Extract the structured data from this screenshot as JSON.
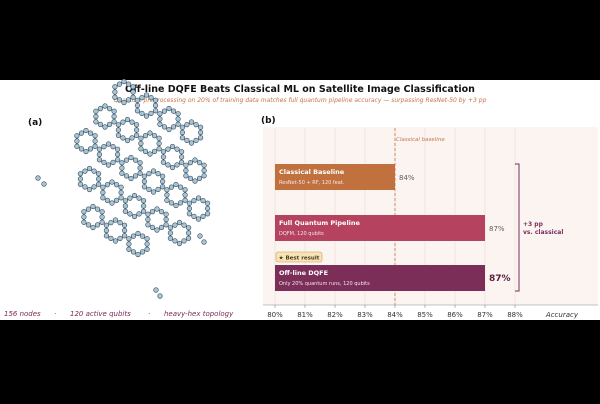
{
  "figure": {
    "title": "Off-line DQFE Beats Classical ML on Satellite Image Classification",
    "subtitle": "Quantum preprocessing on 20% of training data matches full quantum pipeline accuracy — surpassing ResNet-50 by +3 pp",
    "colors": {
      "title": "#111111",
      "subtitle": "#c8744a",
      "node_fill": "#a9c4d4",
      "node_stroke": "#2e4656",
      "edge": "#3a4a55",
      "caption": "#7a2a55",
      "panel_bg": "#fbf4f0",
      "bracket": "#7a2e5e"
    }
  },
  "panel_a": {
    "label": "(a)",
    "caption_nodes": "156 nodes",
    "caption_sep": "·",
    "caption_qubits": "120 active qubits",
    "caption_topology": "heavy-hex topology"
  },
  "panel_b": {
    "label": "(b)",
    "baseline_label": "Classical baseline",
    "best_badge": "★ Best result",
    "bracket_label_1": "+3 pp",
    "bracket_label_2": "vs. classical"
  },
  "chart_data": {
    "type": "bar",
    "orientation": "horizontal",
    "xlabel": "Accuracy",
    "xlim": [
      80,
      88.5
    ],
    "ticks": [
      80,
      81,
      82,
      83,
      84,
      85,
      86,
      87,
      88
    ],
    "tick_labels": [
      "80%",
      "81%",
      "82%",
      "83%",
      "84%",
      "85%",
      "86%",
      "87%",
      "88%"
    ],
    "reference_line": {
      "value": 84,
      "label": "Classical baseline"
    },
    "grid": "vertical",
    "bars": [
      {
        "name": "Classical Baseline",
        "detail": "ResNet-50 + RF, 120 feat.",
        "value": 84,
        "value_label": "84%",
        "color": "#c0713d"
      },
      {
        "name": "Full Quantum Pipeline",
        "detail": "DQFM, 120 qubits",
        "value": 87,
        "value_label": "87%",
        "color": "#b5435f"
      },
      {
        "name": "Off-line DQFE",
        "detail": "Only 20% quantum runs, 120 qubits",
        "value": 87,
        "value_label": "87%",
        "color": "#7a2e58"
      }
    ]
  }
}
